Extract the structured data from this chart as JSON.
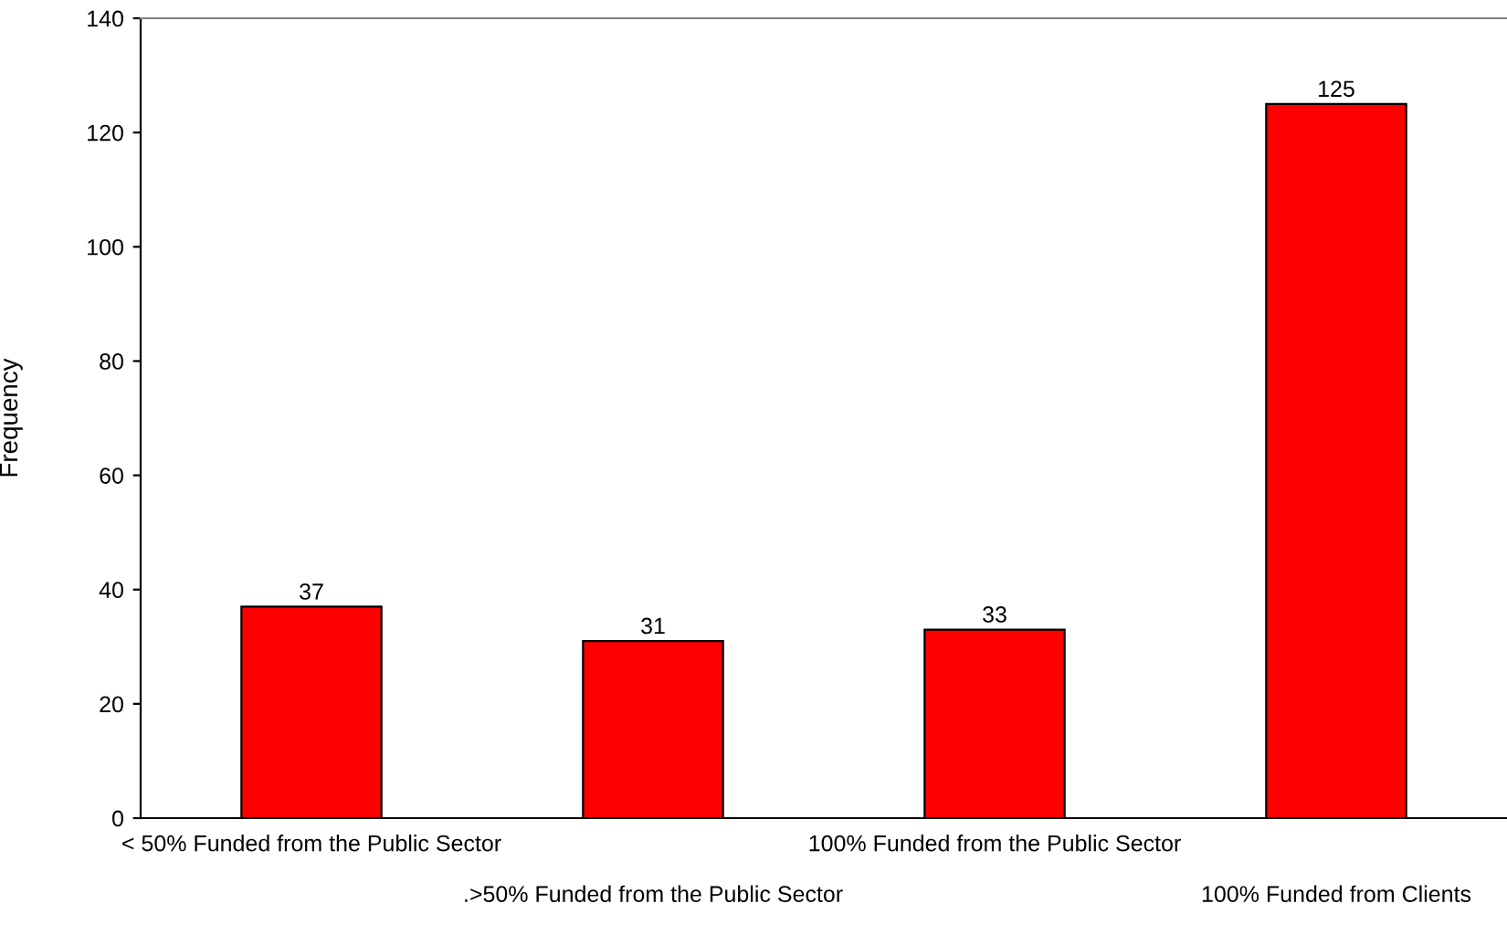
{
  "chart_data": {
    "type": "bar",
    "ylabel": "Frequency",
    "categories": [
      "< 50% Funded from the Public Sector",
      ".>50% Funded from the Public Sector",
      "100% Funded from the Public Sector",
      "100% Funded from Clients"
    ],
    "values": [
      37,
      31,
      33,
      125
    ],
    "color": "#ff0000",
    "ylim": [
      0,
      140
    ],
    "yticks": [
      0,
      20,
      40,
      60,
      80,
      100,
      120,
      140
    ],
    "grid": false,
    "data_labels": true
  }
}
